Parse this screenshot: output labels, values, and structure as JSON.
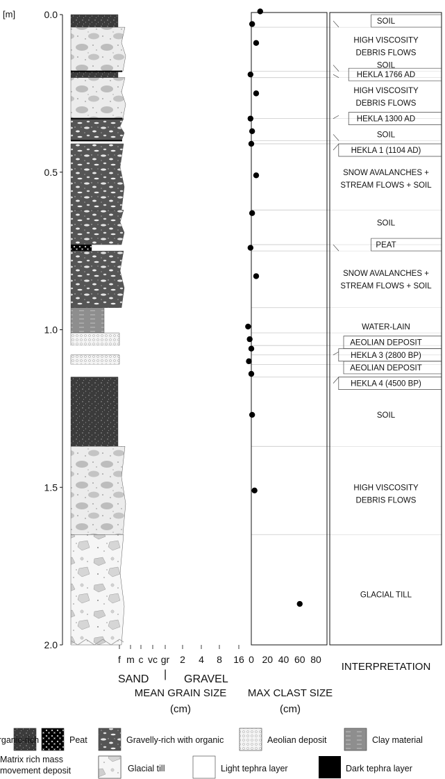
{
  "depth_axis": {
    "unit": "[m]",
    "ticks": [
      "0.0",
      "0.5",
      "1.0",
      "1.5",
      "2.0"
    ],
    "range": [
      0.0,
      2.0
    ]
  },
  "grain_size_axis": {
    "ticks": [
      "f",
      "m",
      "c",
      "vc",
      "gr",
      "2",
      "4",
      "8",
      "16"
    ],
    "sand_label": "SAND",
    "separator": "|",
    "gravel_label": "GRAVEL",
    "title_line1": "MEAN GRAIN SIZE",
    "title_line2": "(cm)"
  },
  "clast_axis": {
    "ticks": [
      "0",
      "20",
      "40",
      "60",
      "80"
    ],
    "range": [
      0,
      80
    ],
    "title_line1": "MAX CLAST SIZE",
    "title_line2": "(cm)"
  },
  "interpretation_title": "INTERPRETATION",
  "units": [
    {
      "top": 0.0,
      "bottom": 0.04,
      "fill": "organic"
    },
    {
      "top": 0.04,
      "bottom": 0.18,
      "fill": "matrix"
    },
    {
      "top": 0.18,
      "bottom": 0.2,
      "fill": "organic"
    },
    {
      "top": 0.2,
      "bottom": 0.33,
      "fill": "matrix"
    },
    {
      "top": 0.33,
      "bottom": 0.4,
      "fill": "gravelly"
    },
    {
      "top": 0.41,
      "bottom": 0.62,
      "fill": "gravelly"
    },
    {
      "top": 0.62,
      "bottom": 0.73,
      "fill": "gravelly"
    },
    {
      "top": 0.73,
      "bottom": 0.75,
      "fill": "peat"
    },
    {
      "top": 0.75,
      "bottom": 0.93,
      "fill": "gravelly"
    },
    {
      "top": 0.93,
      "bottom": 1.01,
      "fill": "clay"
    },
    {
      "top": 1.01,
      "bottom": 1.05,
      "fill": "aeolian"
    },
    {
      "top": 1.05,
      "bottom": 1.08,
      "fill": "light"
    },
    {
      "top": 1.08,
      "bottom": 1.11,
      "fill": "aeolian"
    },
    {
      "top": 1.11,
      "bottom": 1.15,
      "fill": "light"
    },
    {
      "top": 1.15,
      "bottom": 1.37,
      "fill": "organic"
    },
    {
      "top": 1.37,
      "bottom": 1.65,
      "fill": "matrix"
    },
    {
      "top": 1.65,
      "bottom": 2.0,
      "fill": "till"
    }
  ],
  "clast_points": [
    {
      "depth": -0.01,
      "size": 11
    },
    {
      "depth": 0.03,
      "size": 1
    },
    {
      "depth": 0.09,
      "size": 6
    },
    {
      "depth": 0.19,
      "size": -1
    },
    {
      "depth": 0.25,
      "size": 6
    },
    {
      "depth": 0.33,
      "size": -1
    },
    {
      "depth": 0.37,
      "size": 1
    },
    {
      "depth": 0.41,
      "size": 0
    },
    {
      "depth": 0.51,
      "size": 6
    },
    {
      "depth": 0.63,
      "size": 1
    },
    {
      "depth": 0.74,
      "size": -1
    },
    {
      "depth": 0.83,
      "size": 6
    },
    {
      "depth": 0.99,
      "size": -4
    },
    {
      "depth": 1.03,
      "size": -2
    },
    {
      "depth": 1.06,
      "size": 0
    },
    {
      "depth": 1.1,
      "size": -3
    },
    {
      "depth": 1.14,
      "size": 0
    },
    {
      "depth": 1.27,
      "size": 1
    },
    {
      "depth": 1.51,
      "size": 4
    },
    {
      "depth": 1.87,
      "size": 60
    }
  ],
  "interpretations": [
    {
      "lines": [
        "SOIL"
      ],
      "depth": 0.02,
      "boxed": true,
      "conn": [
        0.02,
        0.04
      ]
    },
    {
      "lines": [
        "HIGH VISCOSITY",
        "DEBRIS FLOWS"
      ],
      "depth": 0.1,
      "boxed": false,
      "conn": null
    },
    {
      "lines": [
        "SOIL"
      ],
      "depth": 0.16,
      "boxed": false,
      "conn": [
        0.16,
        0.18
      ]
    },
    {
      "lines": [
        "HEKLA 1766 AD"
      ],
      "depth": 0.19,
      "boxed": true,
      "conn": [
        0.19,
        0.2
      ]
    },
    {
      "lines": [
        "HIGH VISCOSITY",
        "DEBRIS FLOWS"
      ],
      "depth": 0.26,
      "boxed": false,
      "conn": null
    },
    {
      "lines": [
        "HEKLA 1300 AD"
      ],
      "depth": 0.33,
      "boxed": true,
      "conn": [
        0.33,
        0.32
      ]
    },
    {
      "lines": [
        "SOIL"
      ],
      "depth": 0.38,
      "boxed": false,
      "conn": [
        0.38,
        0.4
      ]
    },
    {
      "lines": [
        "HEKLA 1 (1104 AD)"
      ],
      "depth": 0.43,
      "boxed": true,
      "conn": [
        0.43,
        0.41
      ]
    },
    {
      "lines": [
        "SNOW AVALANCHES +",
        "STREAM FLOWS + SOIL"
      ],
      "depth": 0.52,
      "boxed": false,
      "conn": null
    },
    {
      "lines": [
        "SOIL"
      ],
      "depth": 0.66,
      "boxed": false,
      "conn": null
    },
    {
      "lines": [
        "PEAT"
      ],
      "depth": 0.73,
      "boxed": true,
      "conn": [
        0.73,
        0.75
      ]
    },
    {
      "lines": [
        "SNOW AVALANCHES +",
        "STREAM FLOWS + SOIL"
      ],
      "depth": 0.84,
      "boxed": false,
      "conn": null
    },
    {
      "lines": [
        "WATER-LAIN"
      ],
      "depth": 0.99,
      "boxed": false,
      "conn": null
    },
    {
      "lines": [
        "AEOLIAN DEPOSIT"
      ],
      "depth": 1.04,
      "boxed": true,
      "conn": null
    },
    {
      "lines": [
        "HEKLA 3 (2800 BP)"
      ],
      "depth": 1.08,
      "boxed": true,
      "conn": [
        1.08,
        1.07
      ]
    },
    {
      "lines": [
        "AEOLIAN DEPOSIT"
      ],
      "depth": 1.12,
      "boxed": true,
      "conn": null
    },
    {
      "lines": [
        "HEKLA 4 (4500 BP)"
      ],
      "depth": 1.17,
      "boxed": true,
      "conn": [
        1.17,
        1.15
      ]
    },
    {
      "lines": [
        "SOIL"
      ],
      "depth": 1.27,
      "boxed": false,
      "conn": null
    },
    {
      "lines": [
        "HIGH VISCOSITY",
        "DEBRIS FLOWS"
      ],
      "depth": 1.52,
      "boxed": false,
      "conn": null
    },
    {
      "lines": [
        "GLACIAL TILL"
      ],
      "depth": 1.84,
      "boxed": false,
      "conn": null
    }
  ],
  "boundaries": [
    0.04,
    0.18,
    0.2,
    0.33,
    0.4,
    0.41,
    0.62,
    0.73,
    0.75,
    0.93,
    1.01,
    1.05,
    1.08,
    1.11,
    1.15,
    1.37,
    1.65
  ],
  "legend": [
    {
      "label": "Organic-rich",
      "fill": "organic"
    },
    {
      "label": "Peat",
      "fill": "peat"
    },
    {
      "label": "Gravelly-rich with organic",
      "fill": "gravelly"
    },
    {
      "label": "Aeolian deposit",
      "fill": "aeolian"
    },
    {
      "label": "Clay material",
      "fill": "clay"
    },
    {
      "label": "Matrix rich mass movement deposit",
      "fill": "matrix"
    },
    {
      "label": "Glacial till",
      "fill": "till"
    },
    {
      "label": "Light tephra layer",
      "fill": "light"
    },
    {
      "label": "Dark tephra layer",
      "fill": "dark"
    }
  ],
  "colors": {
    "organic": "#3a3a3a",
    "gravelly": "#555555",
    "clay": "#8c8c8c",
    "matrix": "#eeeeee",
    "dot": "#000000"
  }
}
